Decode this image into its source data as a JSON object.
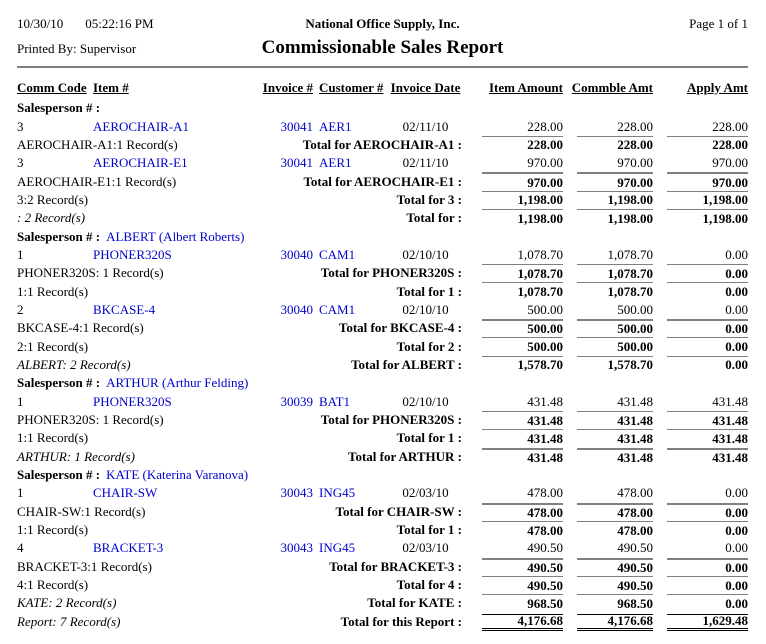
{
  "page_header": {
    "date": "10/30/10",
    "time": "05:22:16 PM",
    "company": "National Office Supply, Inc.",
    "page_info": "Page 1 of 1",
    "printed_by": "Printed By: Supervisor",
    "title": "Commissionable Sales Report"
  },
  "colors": {
    "link": "#0000cc",
    "rule": "#808080",
    "text": "#000000"
  },
  "columns": [
    "Comm Code",
    "Item #",
    "Invoice #",
    "Customer #",
    "Invoice Date",
    "Item Amount",
    "Commble Amt",
    "Apply Amt"
  ],
  "rows": [
    {
      "type": "group",
      "label": "Salesperson # :",
      "value": ""
    },
    {
      "type": "detail",
      "comm": "3",
      "item": "AEROCHAIR-A1",
      "invoice": "30041",
      "customer": "AER1",
      "date": "02/11/10",
      "item_amount": "228.00",
      "commble_amt": "228.00",
      "apply_amt": "228.00"
    },
    {
      "type": "total",
      "label": "AEROCHAIR-A1:1 Record(s)",
      "italic": false,
      "line": "thin",
      "total_label": "Total for AEROCHAIR-A1 :",
      "item_amount": "228.00",
      "commble_amt": "228.00",
      "apply_amt": "228.00"
    },
    {
      "type": "detail",
      "comm": "3",
      "item": "AEROCHAIR-E1",
      "invoice": "30041",
      "customer": "AER1",
      "date": "02/11/10",
      "item_amount": "970.00",
      "commble_amt": "970.00",
      "apply_amt": "970.00"
    },
    {
      "type": "total",
      "label": "AEROCHAIR-E1:1 Record(s)",
      "italic": false,
      "line": "thick",
      "total_label": "Total for AEROCHAIR-E1 :",
      "item_amount": "970.00",
      "commble_amt": "970.00",
      "apply_amt": "970.00"
    },
    {
      "type": "total",
      "label": "3:2 Record(s)",
      "italic": false,
      "line": "thin",
      "total_label": "Total for 3 :",
      "item_amount": "1,198.00",
      "commble_amt": "1,198.00",
      "apply_amt": "1,198.00"
    },
    {
      "type": "total",
      "label": ": 2 Record(s)",
      "italic": true,
      "line": "thin",
      "total_label": "Total for :",
      "item_amount": "1,198.00",
      "commble_amt": "1,198.00",
      "apply_amt": "1,198.00"
    },
    {
      "type": "group",
      "label": "Salesperson # :",
      "value": "ALBERT (Albert Roberts)"
    },
    {
      "type": "detail",
      "comm": "1",
      "item": "PHONER320S",
      "invoice": "30040",
      "customer": "CAM1",
      "date": "02/10/10",
      "item_amount": "1,078.70",
      "commble_amt": "1,078.70",
      "apply_amt": "0.00"
    },
    {
      "type": "total",
      "label": "PHONER320S: 1 Record(s)",
      "italic": false,
      "line": "thin",
      "total_label": "Total for PHONER320S :",
      "item_amount": "1,078.70",
      "commble_amt": "1,078.70",
      "apply_amt": "0.00"
    },
    {
      "type": "total",
      "label": "1:1 Record(s)",
      "italic": false,
      "line": "thin",
      "total_label": "Total for 1 :",
      "item_amount": "1,078.70",
      "commble_amt": "1,078.70",
      "apply_amt": "0.00"
    },
    {
      "type": "detail",
      "comm": "2",
      "item": "BKCASE-4",
      "invoice": "30040",
      "customer": "CAM1",
      "date": "02/10/10",
      "item_amount": "500.00",
      "commble_amt": "500.00",
      "apply_amt": "0.00"
    },
    {
      "type": "total",
      "label": "BKCASE-4:1 Record(s)",
      "italic": false,
      "line": "thick",
      "total_label": "Total for BKCASE-4 :",
      "item_amount": "500.00",
      "commble_amt": "500.00",
      "apply_amt": "0.00"
    },
    {
      "type": "total",
      "label": "2:1 Record(s)",
      "italic": false,
      "line": "thin",
      "total_label": "Total for 2 :",
      "item_amount": "500.00",
      "commble_amt": "500.00",
      "apply_amt": "0.00"
    },
    {
      "type": "total",
      "label": "ALBERT: 2 Record(s)",
      "italic": true,
      "line": "thin",
      "total_label": "Total for ALBERT :",
      "item_amount": "1,578.70",
      "commble_amt": "1,578.70",
      "apply_amt": "0.00"
    },
    {
      "type": "group",
      "label": "Salesperson # :",
      "value": "ARTHUR (Arthur Felding)"
    },
    {
      "type": "detail",
      "comm": "1",
      "item": "PHONER320S",
      "invoice": "30039",
      "customer": "BAT1",
      "date": "02/10/10",
      "item_amount": "431.48",
      "commble_amt": "431.48",
      "apply_amt": "431.48"
    },
    {
      "type": "total",
      "label": "PHONER320S: 1 Record(s)",
      "italic": false,
      "line": "thin",
      "total_label": "Total for PHONER320S :",
      "item_amount": "431.48",
      "commble_amt": "431.48",
      "apply_amt": "431.48"
    },
    {
      "type": "total",
      "label": "1:1 Record(s)",
      "italic": false,
      "line": "thin",
      "total_label": "Total for 1 :",
      "item_amount": "431.48",
      "commble_amt": "431.48",
      "apply_amt": "431.48"
    },
    {
      "type": "total",
      "label": "ARTHUR: 1 Record(s)",
      "italic": true,
      "line": "thick",
      "total_label": "Total for ARTHUR :",
      "item_amount": "431.48",
      "commble_amt": "431.48",
      "apply_amt": "431.48"
    },
    {
      "type": "group",
      "label": "Salesperson # :",
      "value": "KATE (Katerina Varanova)"
    },
    {
      "type": "detail",
      "comm": "1",
      "item": "CHAIR-SW",
      "invoice": "30043",
      "customer": "ING45",
      "date": "02/03/10",
      "item_amount": "478.00",
      "commble_amt": "478.00",
      "apply_amt": "0.00"
    },
    {
      "type": "total",
      "label": "CHAIR-SW:1 Record(s)",
      "italic": false,
      "line": "thick",
      "total_label": "Total for CHAIR-SW :",
      "item_amount": "478.00",
      "commble_amt": "478.00",
      "apply_amt": "0.00"
    },
    {
      "type": "total",
      "label": "1:1 Record(s)",
      "italic": false,
      "line": "thin",
      "total_label": "Total for 1 :",
      "item_amount": "478.00",
      "commble_amt": "478.00",
      "apply_amt": "0.00"
    },
    {
      "type": "detail",
      "comm": "4",
      "item": "BRACKET-3",
      "invoice": "30043",
      "customer": "ING45",
      "date": "02/03/10",
      "item_amount": "490.50",
      "commble_amt": "490.50",
      "apply_amt": "0.00"
    },
    {
      "type": "total",
      "label": "BRACKET-3:1 Record(s)",
      "italic": false,
      "line": "thick",
      "total_label": "Total for BRACKET-3 :",
      "item_amount": "490.50",
      "commble_amt": "490.50",
      "apply_amt": "0.00"
    },
    {
      "type": "total",
      "label": "4:1 Record(s)",
      "italic": false,
      "line": "thin",
      "total_label": "Total for 4 :",
      "item_amount": "490.50",
      "commble_amt": "490.50",
      "apply_amt": "0.00"
    },
    {
      "type": "total",
      "label": "KATE: 2 Record(s)",
      "italic": true,
      "line": "thin",
      "total_label": "Total for KATE :",
      "item_amount": "968.50",
      "commble_amt": "968.50",
      "apply_amt": "0.00"
    },
    {
      "type": "report_total",
      "label": "Report: 7 Record(s)",
      "italic": true,
      "total_label": "Total for this Report :",
      "item_amount": "4,176.68",
      "commble_amt": "4,176.68",
      "apply_amt": "1,629.48"
    }
  ]
}
